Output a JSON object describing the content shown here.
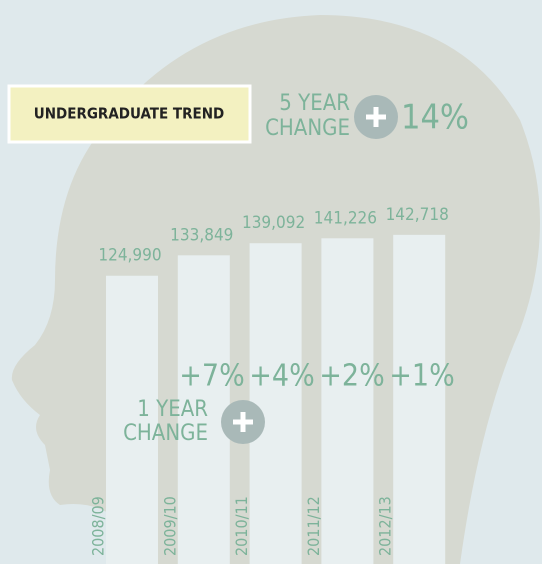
{
  "chart_data": {
    "type": "bar",
    "title": "UNDERGRADUATE TREND",
    "categories": [
      "2008/09",
      "2009/10",
      "2010/11",
      "2011/12",
      "2012/13"
    ],
    "values": [
      124990,
      133849,
      139092,
      141226,
      142718
    ],
    "value_labels": [
      "124,990",
      "133,849",
      "139,092",
      "141,226",
      "142,718"
    ],
    "color": "#e8eff0",
    "ylim": [
      0,
      160000
    ],
    "annotations": {
      "five_year_change": {
        "label_lines": [
          "5 YEAR",
          "CHANGE"
        ],
        "text": "14%"
      },
      "one_year_change": {
        "label_lines": [
          "1 YEAR",
          "CHANGE"
        ],
        "texts": [
          "+7%",
          "+4%",
          "+2%",
          "+1%"
        ]
      }
    }
  }
}
